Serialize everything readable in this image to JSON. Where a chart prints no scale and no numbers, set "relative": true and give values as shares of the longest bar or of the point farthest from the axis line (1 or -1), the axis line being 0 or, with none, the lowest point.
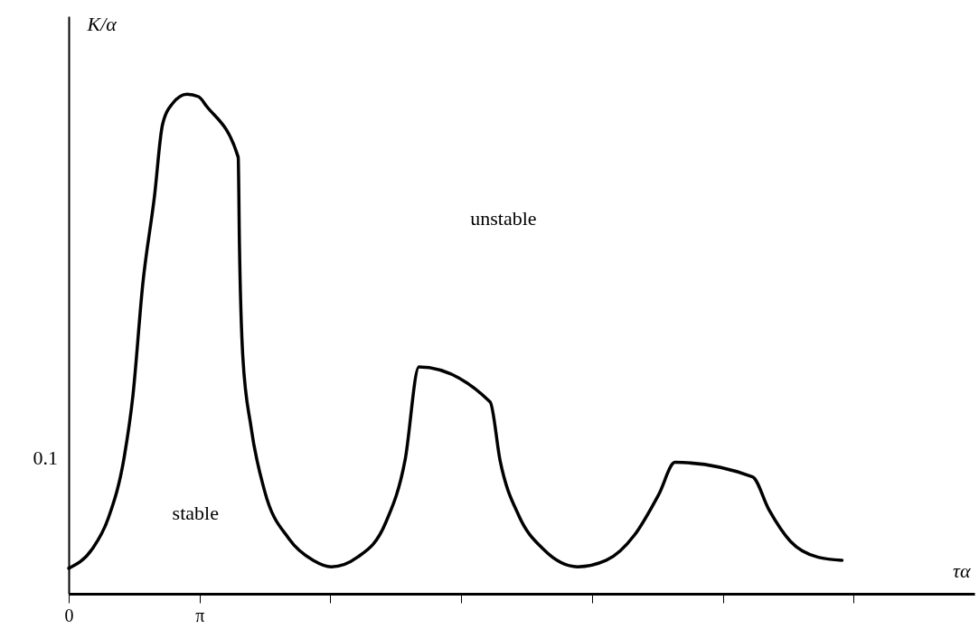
{
  "chart_data": {
    "type": "line",
    "xlabel": "τα",
    "ylabel": "K/α",
    "relative": true,
    "x": [
      0,
      0.56,
      0.95,
      1.34,
      1.54,
      1.78,
      2.06,
      2.25,
      2.49,
      2.84,
      3.12,
      3.31,
      4.07,
      4.1,
      4.18,
      4.38,
      4.7,
      5.29,
      5.87,
      6.31,
      6.93,
      7.61,
      8.08,
      8.41,
      10.12,
      10.36,
      10.81,
      11.4,
      12.22,
      12.91,
      13.59,
      14.17,
      14.56,
      16.42,
      16.81,
      17.33,
      18.0,
      18.57
    ],
    "series": [
      {
        "color": "#000000",
        "values": [
          0.051,
          0.089,
          0.151,
          0.277,
          0.395,
          0.621,
          0.796,
          0.938,
          0.981,
          1,
          0.995,
          0.976,
          0.874,
          0.699,
          0.476,
          0.333,
          0.207,
          0.11,
          0.067,
          0.054,
          0.073,
          0.142,
          0.269,
          0.454,
          0.384,
          0.266,
          0.156,
          0.089,
          0.054,
          0.067,
          0.118,
          0.199,
          0.263,
          0.234,
          0.169,
          0.105,
          0.073,
          0.067
        ]
      }
    ],
    "xlim": [
      0,
      21.75
    ],
    "xticks": [
      {
        "value": 0,
        "label": "0"
      },
      {
        "value": 3.1416,
        "label": "π"
      },
      {
        "value": 6.2832,
        "label": null
      },
      {
        "value": 9.4248,
        "label": null
      },
      {
        "value": 12.5664,
        "label": null
      },
      {
        "value": 15.708,
        "label": null
      },
      {
        "value": 18.8496,
        "label": null
      }
    ],
    "annotations": [
      "stable",
      "unstable",
      "0.1"
    ],
    "grid": false,
    "line_style": "solid"
  }
}
